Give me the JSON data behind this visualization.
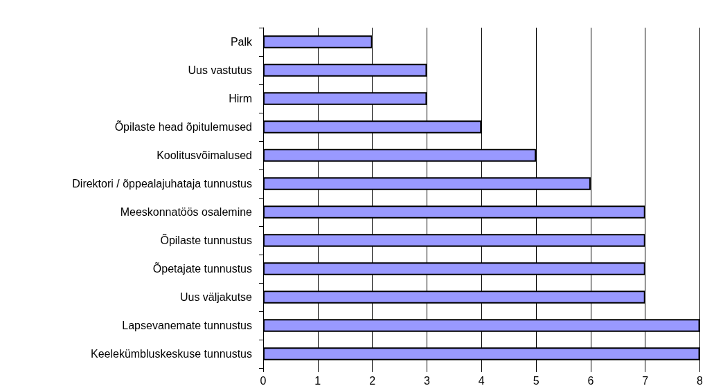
{
  "chart_data": {
    "type": "bar",
    "orientation": "horizontal",
    "categories": [
      "Palk",
      "Uus vastutus",
      "Hirm",
      "Õpilaste head õpitulemused",
      "Koolitusvõimalused",
      "Direktori / õppealajuhataja tunnustus",
      "Meeskonnatöös osalemine",
      "Õpilaste tunnustus",
      "Õpetajate tunnustus",
      "Uus väljakutse",
      "Lapsevanemate tunnustus",
      "Keelekümbluskeskuse tunnustus"
    ],
    "values": [
      2,
      3,
      3,
      4,
      5,
      6,
      7,
      7,
      7,
      7,
      8,
      8
    ],
    "color": "#9999ff",
    "xlim": [
      0,
      8
    ],
    "xticks": [
      0,
      1,
      2,
      3,
      4,
      5,
      6,
      7,
      8
    ],
    "grid": "x"
  }
}
